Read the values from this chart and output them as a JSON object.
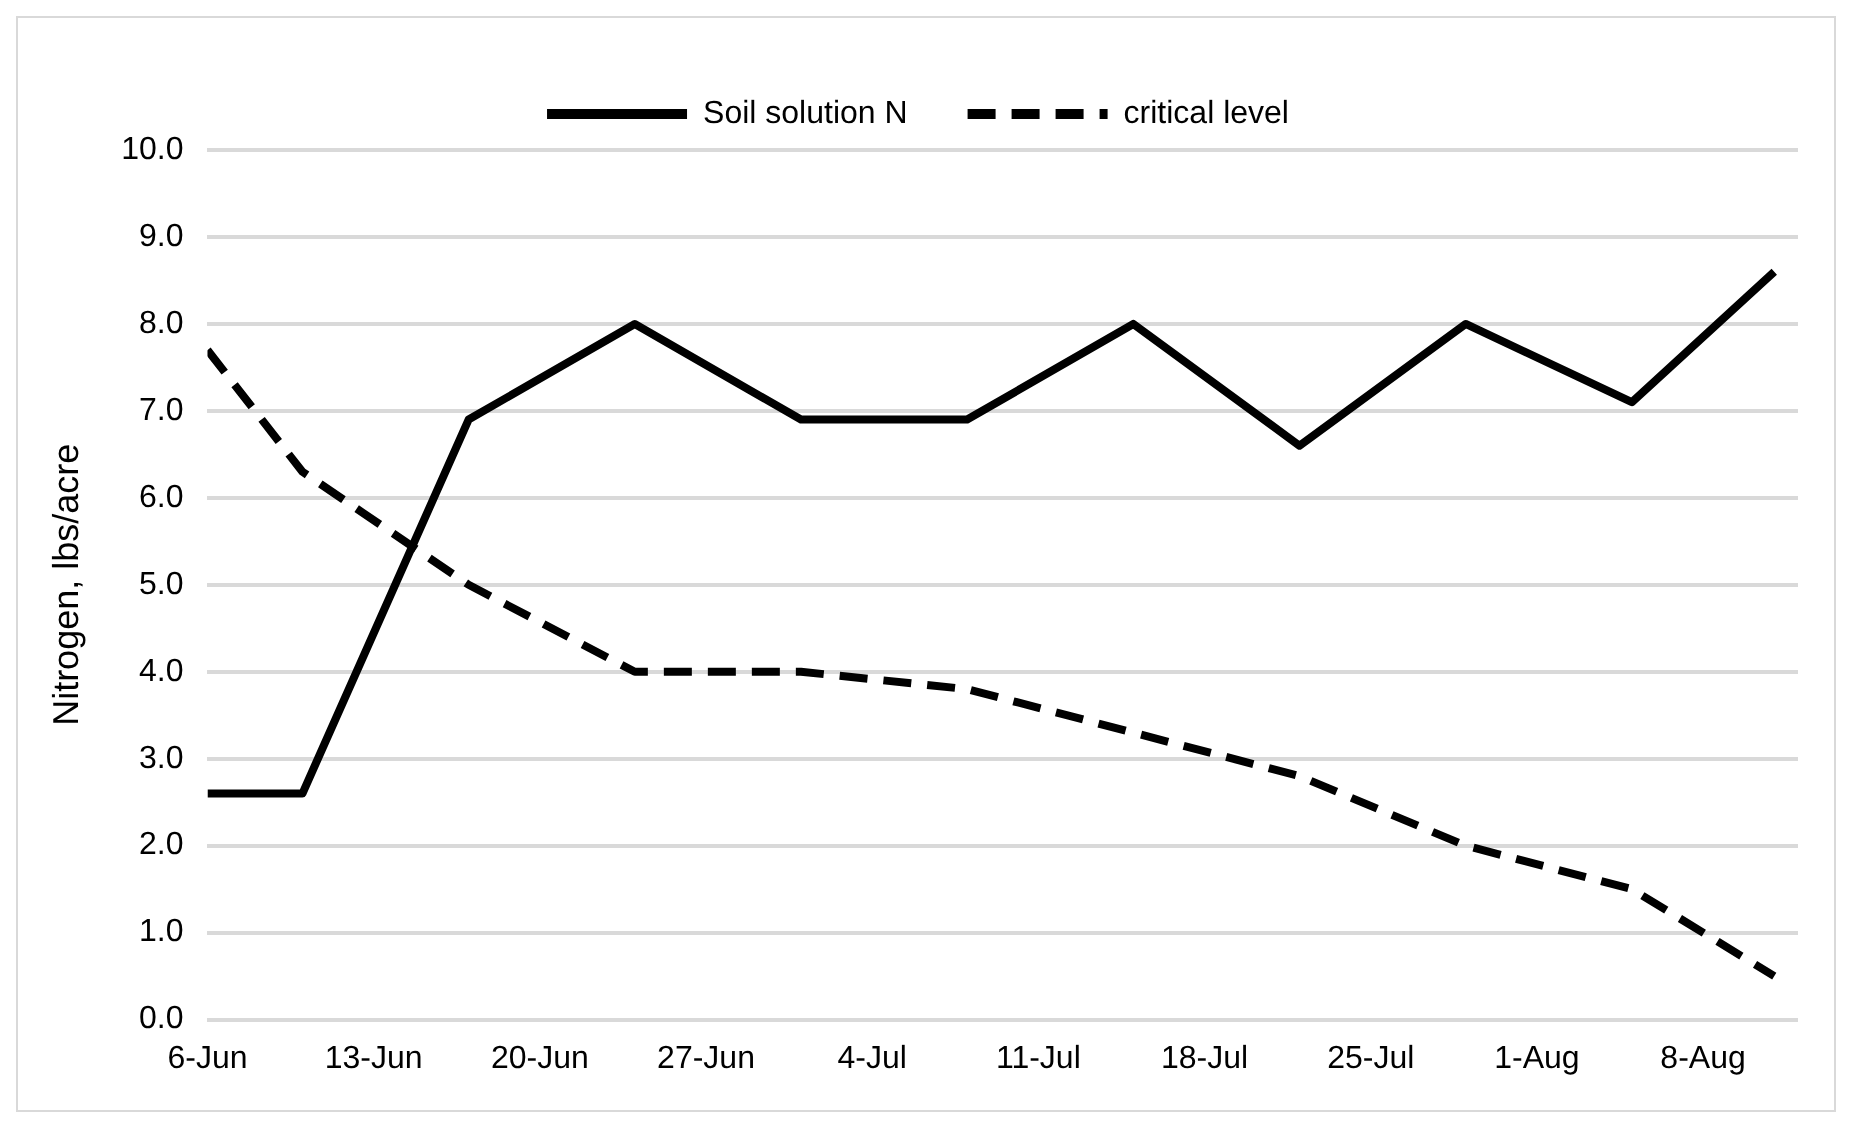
{
  "chart_data": {
    "type": "line",
    "ylabel": "Nitrogen, lbs/acre",
    "x": [
      "--06-06",
      "--06-10",
      "--06-17",
      "--06-24",
      "--07-01",
      "--07-08",
      "--07-15",
      "--07-22",
      "--07-29",
      "--08-05",
      "--08-11"
    ],
    "series": [
      {
        "name": "Soil solution N",
        "color": "#000000",
        "line_style": "solid",
        "values": [
          2.6,
          2.6,
          6.9,
          8.0,
          6.9,
          6.9,
          8.0,
          6.6,
          8.0,
          7.1,
          8.6
        ]
      },
      {
        "name": "critical level",
        "color": "#000000",
        "line_style": "dashed",
        "values": [
          7.7,
          6.3,
          5.0,
          4.0,
          4.0,
          3.8,
          3.3,
          2.8,
          2.0,
          1.5,
          0.5
        ]
      }
    ],
    "xlim": [
      "--06-06",
      "--08-12"
    ],
    "xticks": [
      {
        "value": "--06-06",
        "label": "6-Jun"
      },
      {
        "value": "--06-13",
        "label": "13-Jun"
      },
      {
        "value": "--06-20",
        "label": "20-Jun"
      },
      {
        "value": "--06-27",
        "label": "27-Jun"
      },
      {
        "value": "--07-04",
        "label": "4-Jul"
      },
      {
        "value": "--07-11",
        "label": "11-Jul"
      },
      {
        "value": "--07-18",
        "label": "18-Jul"
      },
      {
        "value": "--07-25",
        "label": "25-Jul"
      },
      {
        "value": "--08-01",
        "label": "1-Aug"
      },
      {
        "value": "--08-08",
        "label": "8-Aug"
      }
    ],
    "ylim": [
      0,
      10
    ],
    "yticks": [
      {
        "value": 0,
        "label": "0.0"
      },
      {
        "value": 1,
        "label": "1.0"
      },
      {
        "value": 2,
        "label": "2.0"
      },
      {
        "value": 3,
        "label": "3.0"
      },
      {
        "value": 4,
        "label": "4.0"
      },
      {
        "value": 5,
        "label": "5.0"
      },
      {
        "value": 6,
        "label": "6.0"
      },
      {
        "value": 7,
        "label": "7.0"
      },
      {
        "value": 8,
        "label": "8.0"
      },
      {
        "value": 9,
        "label": "9.0"
      },
      {
        "value": 10,
        "label": "10.0"
      }
    ],
    "grid": "y",
    "legend": "top",
    "marker": "none"
  }
}
